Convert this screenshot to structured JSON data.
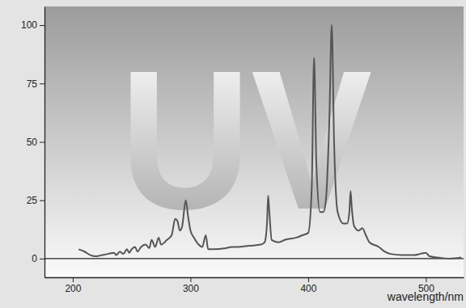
{
  "chart_data": {
    "type": "line",
    "x_label": "wavelength/nm",
    "annotations": [
      "UV"
    ],
    "x": [
      205,
      210,
      215,
      220,
      225,
      230,
      235,
      237,
      240,
      243,
      246,
      248,
      250,
      253,
      255,
      258,
      262,
      265,
      267,
      270,
      273,
      275,
      280,
      284,
      287,
      289,
      291,
      293,
      296,
      298,
      300,
      303,
      307,
      310,
      313,
      315,
      320,
      330,
      335,
      340,
      350,
      360,
      363,
      365,
      366,
      367,
      369,
      375,
      380,
      390,
      395,
      400,
      403,
      405,
      407,
      410,
      413,
      415,
      418,
      420,
      422,
      425,
      430,
      433,
      435,
      436,
      437,
      439,
      443,
      446,
      449,
      452,
      460,
      465,
      470,
      480,
      490,
      495,
      500,
      503,
      510,
      520,
      530
    ],
    "values": [
      4,
      3,
      1.5,
      1,
      1.5,
      2,
      2.5,
      1.5,
      3,
      2,
      4,
      2.5,
      4,
      5,
      3,
      5,
      6,
      4.5,
      8,
      5,
      9,
      6,
      8,
      10,
      17,
      16,
      12,
      14,
      25,
      18,
      12,
      9,
      6,
      5,
      10,
      4,
      4,
      4.5,
      5,
      5,
      5.5,
      6,
      7,
      15,
      27,
      20,
      8,
      7,
      8,
      9,
      10,
      11,
      30,
      86,
      40,
      20,
      20,
      25,
      60,
      100,
      50,
      20,
      15,
      15,
      20,
      29,
      22,
      14,
      12,
      13,
      10,
      7,
      5,
      3,
      2,
      1.5,
      1.5,
      2,
      2.5,
      1,
      0.5,
      0,
      0.5
    ],
    "color": "#555555",
    "xlim": [
      176,
      532
    ],
    "xticks": [
      200,
      300,
      400,
      500
    ],
    "ylim": [
      -8,
      108
    ],
    "yticks": [
      0,
      25,
      50,
      75,
      100
    ],
    "grid": false
  }
}
